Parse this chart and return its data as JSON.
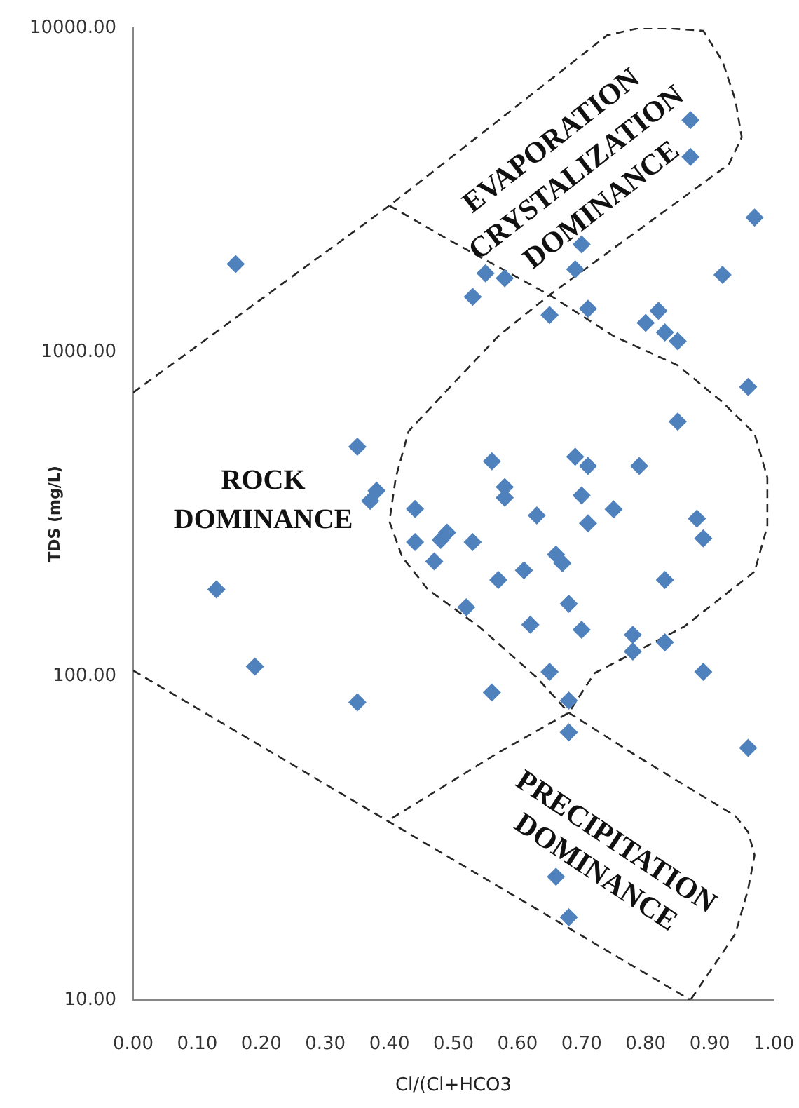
{
  "chart_data": {
    "type": "scatter",
    "xlabel": "Cl/(Cl+HCO3",
    "ylabel": "TDS (mg/L)",
    "annotations": [
      "EVAPORATION CRYSTALIZATION DOMINANCE",
      "ROCK DOMINANCE",
      "PRECIPITATION DOMINANCE"
    ],
    "series": [
      {
        "color": "#4f81bd",
        "x": [
          0.16,
          0.87,
          0.87,
          0.97,
          0.7,
          0.55,
          0.58,
          0.69,
          0.53,
          0.92,
          0.65,
          0.71,
          0.82,
          0.8,
          0.83,
          0.85,
          0.96,
          0.85,
          0.35,
          0.56,
          0.69,
          0.71,
          0.79,
          0.38,
          0.37,
          0.58,
          0.58,
          0.7,
          0.44,
          0.63,
          0.75,
          0.71,
          0.88,
          0.89,
          0.44,
          0.48,
          0.49,
          0.53,
          0.47,
          0.66,
          0.67,
          0.61,
          0.57,
          0.83,
          0.13,
          0.52,
          0.68,
          0.62,
          0.7,
          0.78,
          0.78,
          0.83,
          0.19,
          0.65,
          0.89,
          0.35,
          0.56,
          0.68,
          0.68,
          0.96,
          0.66,
          0.68
        ],
        "values": [
          1870,
          5200,
          4000,
          2600,
          2150,
          1750,
          1690,
          1800,
          1480,
          1730,
          1300,
          1360,
          1340,
          1230,
          1150,
          1080,
          780,
          610,
          510,
          460,
          475,
          445,
          445,
          373,
          347,
          383,
          355,
          361,
          328,
          313,
          327,
          296,
          306,
          266,
          259,
          263,
          277,
          259,
          226,
          237,
          223,
          212,
          198,
          198,
          185,
          163,
          167,
          144,
          139,
          134,
          119,
          127,
          107,
          103,
          103,
          83,
          89,
          84,
          67,
          60,
          24,
          18
        ]
      },
      {
        "type": "line",
        "color": "#262626",
        "line_style": "dashed",
        "marker": "none",
        "x": [
          0,
          0.4,
          0.74,
          0.79,
          0.83,
          0.89,
          0.92,
          0.94,
          0.95,
          0.93,
          0.65,
          0.57,
          0.5,
          0.43,
          0.41,
          0.4,
          0.42,
          0.46,
          0.54,
          0.63,
          0.68,
          0.79,
          0.94,
          0.96,
          0.97,
          0.96,
          0.94,
          0.87
        ],
        "values": [
          750,
          2830,
          9500,
          10000,
          10000,
          9800,
          7900,
          6000,
          4600,
          3800,
          1500,
          1120,
          800,
          570,
          410,
          300,
          233,
          185,
          142,
          99,
          77,
          56,
          37,
          33,
          28,
          22,
          16,
          10
        ]
      },
      {
        "type": "line",
        "color": "#262626",
        "line_style": "dashed",
        "marker": "none",
        "x": [
          0.4,
          0.5,
          0.65,
          0.75,
          0.85,
          0.92,
          0.97,
          0.99,
          0.99,
          0.97,
          0.86,
          0.72,
          0.68,
          0.57,
          0.4
        ],
        "values": [
          2830,
          2180,
          1500,
          1120,
          910,
          700,
          560,
          410,
          290,
          210,
          142,
          102,
          77,
          58,
          36
        ]
      },
      {
        "type": "line",
        "color": "#262626",
        "line_style": "dashed",
        "marker": "none",
        "x": [
          0,
          0.87
        ],
        "values": [
          104,
          10
        ]
      }
    ],
    "marker": "diamond",
    "log": "y",
    "xlim": [
      0,
      1
    ],
    "xticks": [
      {
        "value": 0,
        "label": "0.00"
      },
      {
        "value": 0.1,
        "label": "0.10"
      },
      {
        "value": 0.2,
        "label": "0.20"
      },
      {
        "value": 0.3,
        "label": "0.30"
      },
      {
        "value": 0.4,
        "label": "0.40"
      },
      {
        "value": 0.5,
        "label": "0.50"
      },
      {
        "value": 0.6,
        "label": "0.60"
      },
      {
        "value": 0.7,
        "label": "0.70"
      },
      {
        "value": 0.8,
        "label": "0.80"
      },
      {
        "value": 0.9,
        "label": "0.90"
      },
      {
        "value": 1,
        "label": "1.00"
      }
    ],
    "ylim": [
      10,
      10000
    ],
    "yticks": [
      {
        "value": 10,
        "label": "10.00"
      },
      {
        "value": 100,
        "label": "100.00"
      },
      {
        "value": 1000,
        "label": "1000.00"
      },
      {
        "value": 10000,
        "label": "10000.00"
      }
    ]
  }
}
